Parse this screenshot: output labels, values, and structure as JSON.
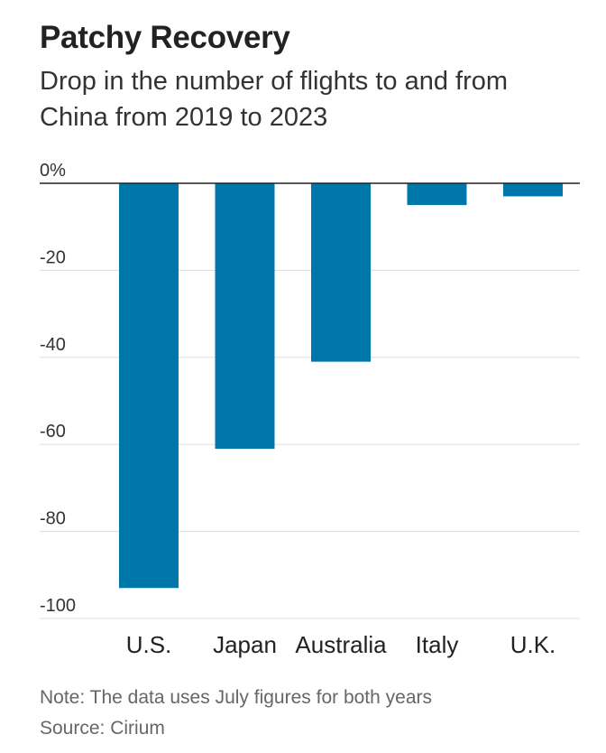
{
  "chart_data": {
    "type": "bar",
    "title": "Patchy Recovery",
    "subtitle": "Drop in the number of flights to and from China from 2019 to 2023",
    "categories": [
      "U.S.",
      "Japan",
      "Australia",
      "Italy",
      "U.K."
    ],
    "values": [
      -93,
      -61,
      -41,
      -5,
      -3
    ],
    "ylim": [
      -100,
      0
    ],
    "yticks": [
      0,
      -20,
      -40,
      -60,
      -80,
      -100
    ],
    "ytick_labels": [
      "0%",
      "-20",
      "-40",
      "-60",
      "-80",
      "-100"
    ],
    "grid": true,
    "colors": {
      "bar": "#0077aa",
      "grid": "#dddddd",
      "baseline": "#222222"
    }
  },
  "footer": {
    "note": "Note: The data uses July figures for both years",
    "source": "Source: Cirium"
  }
}
